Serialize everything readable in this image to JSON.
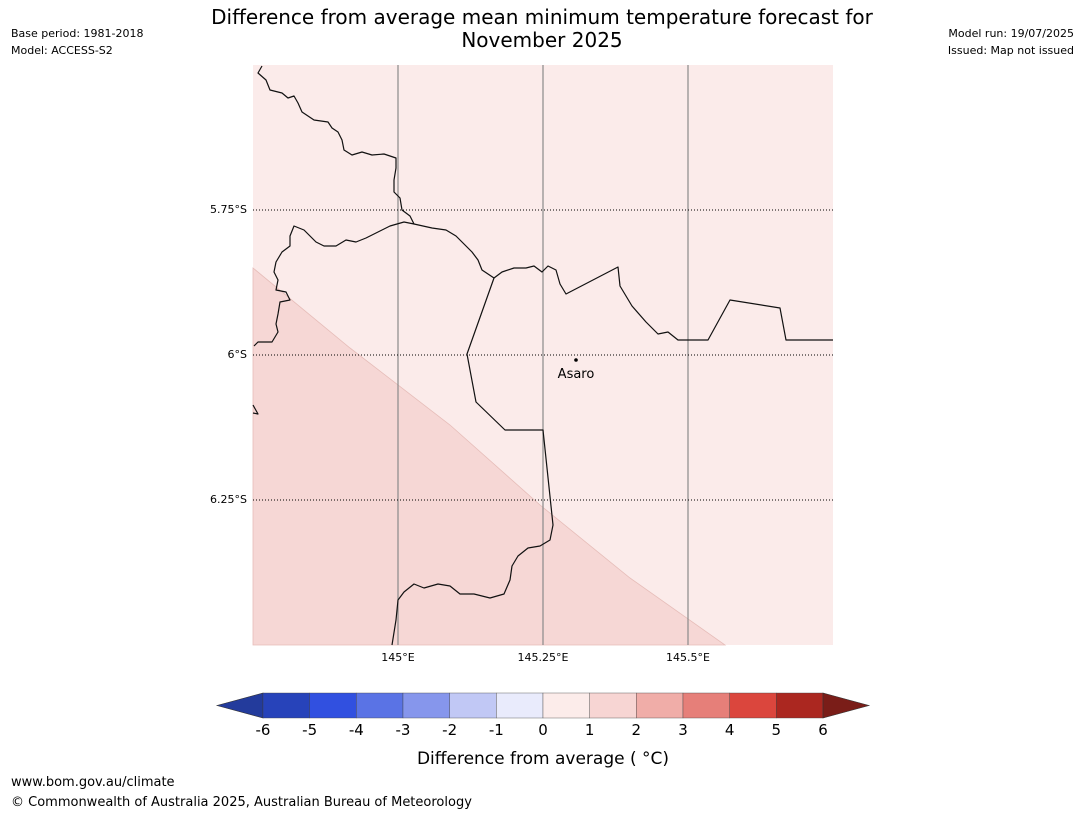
{
  "title": {
    "line1": "Difference from average mean minimum temperature forecast for",
    "line2": "November 2025"
  },
  "meta": {
    "base_period": "Base period: 1981-2018",
    "model": "Model: ACCESS-S2",
    "model_run": "Model run: 19/07/2025",
    "issued": "Issued: Map not issued"
  },
  "map": {
    "lat_labels": [
      "5.75°S",
      "6°S",
      "6.25°S"
    ],
    "lon_labels": [
      "145°E",
      "145.25°E",
      "145.5°E"
    ],
    "place": {
      "name": "Asaro"
    },
    "regions": [
      {
        "name": "1 to 2 °C",
        "color": "#f6d7d5"
      },
      {
        "name": "0 to 1 °C",
        "color": "#fbebea"
      }
    ]
  },
  "colorbar": {
    "label": "Difference from average ( °C)",
    "ticks": [
      "-6",
      "-5",
      "-4",
      "-3",
      "-2",
      "-1",
      "0",
      "1",
      "2",
      "3",
      "4",
      "5",
      "6"
    ],
    "colors": [
      "#233b9c",
      "#2743ba",
      "#3150e0",
      "#5a73e5",
      "#8696ec",
      "#c1c8f5",
      "#e9ebfc",
      "#fcecea",
      "#f7d5d3",
      "#f0ada8",
      "#e67f79",
      "#db463d",
      "#ab2720",
      "#7a1d18"
    ]
  },
  "footer": {
    "url": "www.bom.gov.au/climate",
    "copyright": "© Commonwealth of Australia 2025, Australian Bureau of Meteorology"
  }
}
